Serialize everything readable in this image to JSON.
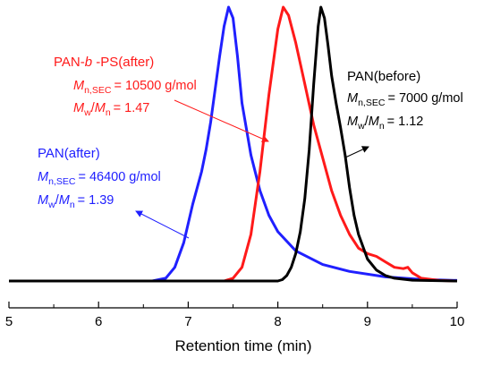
{
  "chart_data": {
    "type": "line",
    "xlabel": "Retention time (min)",
    "ylabel": "",
    "xlim": [
      5,
      10
    ],
    "xticks": [
      5,
      6,
      7,
      8,
      9,
      10
    ],
    "tick_labels": [
      "5",
      "6",
      "7",
      "8",
      "9",
      "10"
    ],
    "series": [
      {
        "color": "#2020ff",
        "points": [
          [
            5.0,
            0.0
          ],
          [
            6.6,
            0.0
          ],
          [
            6.75,
            0.01
          ],
          [
            6.85,
            0.05
          ],
          [
            6.95,
            0.14
          ],
          [
            7.05,
            0.28
          ],
          [
            7.15,
            0.4
          ],
          [
            7.2,
            0.48
          ],
          [
            7.25,
            0.58
          ],
          [
            7.3,
            0.7
          ],
          [
            7.35,
            0.82
          ],
          [
            7.4,
            0.93
          ],
          [
            7.45,
            1.0
          ],
          [
            7.5,
            0.96
          ],
          [
            7.55,
            0.82
          ],
          [
            7.6,
            0.65
          ],
          [
            7.7,
            0.46
          ],
          [
            7.8,
            0.33
          ],
          [
            7.9,
            0.24
          ],
          [
            8.0,
            0.18
          ],
          [
            8.2,
            0.11
          ],
          [
            8.5,
            0.06
          ],
          [
            8.8,
            0.035
          ],
          [
            9.2,
            0.015
          ],
          [
            9.6,
            0.006
          ],
          [
            10.0,
            0.002
          ]
        ]
      },
      {
        "color": "#ff1a1a",
        "points": [
          [
            5.0,
            0.0
          ],
          [
            7.4,
            0.0
          ],
          [
            7.5,
            0.01
          ],
          [
            7.6,
            0.05
          ],
          [
            7.7,
            0.17
          ],
          [
            7.8,
            0.4
          ],
          [
            7.9,
            0.68
          ],
          [
            8.0,
            0.92
          ],
          [
            8.06,
            1.0
          ],
          [
            8.12,
            0.97
          ],
          [
            8.2,
            0.87
          ],
          [
            8.3,
            0.72
          ],
          [
            8.4,
            0.57
          ],
          [
            8.5,
            0.45
          ],
          [
            8.6,
            0.33
          ],
          [
            8.7,
            0.24
          ],
          [
            8.8,
            0.17
          ],
          [
            8.9,
            0.12
          ],
          [
            9.0,
            0.1
          ],
          [
            9.1,
            0.09
          ],
          [
            9.2,
            0.07
          ],
          [
            9.3,
            0.05
          ],
          [
            9.4,
            0.045
          ],
          [
            9.45,
            0.05
          ],
          [
            9.5,
            0.03
          ],
          [
            9.6,
            0.01
          ],
          [
            9.8,
            0.002
          ],
          [
            10.0,
            0.0
          ]
        ]
      },
      {
        "color": "#000000",
        "points": [
          [
            5.0,
            0.0
          ],
          [
            8.0,
            0.0
          ],
          [
            8.05,
            0.005
          ],
          [
            8.1,
            0.02
          ],
          [
            8.15,
            0.05
          ],
          [
            8.2,
            0.1
          ],
          [
            8.25,
            0.18
          ],
          [
            8.3,
            0.3
          ],
          [
            8.35,
            0.48
          ],
          [
            8.4,
            0.72
          ],
          [
            8.45,
            0.93
          ],
          [
            8.48,
            1.0
          ],
          [
            8.52,
            0.96
          ],
          [
            8.56,
            0.86
          ],
          [
            8.6,
            0.75
          ],
          [
            8.65,
            0.65
          ],
          [
            8.7,
            0.56
          ],
          [
            8.75,
            0.46
          ],
          [
            8.8,
            0.34
          ],
          [
            8.85,
            0.24
          ],
          [
            8.9,
            0.17
          ],
          [
            9.0,
            0.08
          ],
          [
            9.1,
            0.04
          ],
          [
            9.2,
            0.02
          ],
          [
            9.3,
            0.01
          ],
          [
            9.5,
            0.003
          ],
          [
            10.0,
            0.0
          ]
        ]
      }
    ],
    "annotations": [
      {
        "id": "pan_b_ps",
        "color": "#ff1a1a",
        "title_pre": "PAN-",
        "title_italic": "b",
        "title_post": " -PS(after)",
        "mn_value": "= 10500 g/mol",
        "pdi_value": "= 1.47"
      },
      {
        "id": "pan_before",
        "color": "#000000",
        "title": "PAN(before)",
        "mn_value": "= 7000 g/mol",
        "pdi_value": "= 1.12"
      },
      {
        "id": "pan_after",
        "color": "#2020ff",
        "title": "PAN(after)",
        "mn_value": "= 46400 g/mol",
        "pdi_value": "= 1.39"
      }
    ],
    "symbols": {
      "M": "M",
      "n_sec": "n,SEC",
      "w": "w",
      "n": "n",
      "slash": "/"
    }
  }
}
